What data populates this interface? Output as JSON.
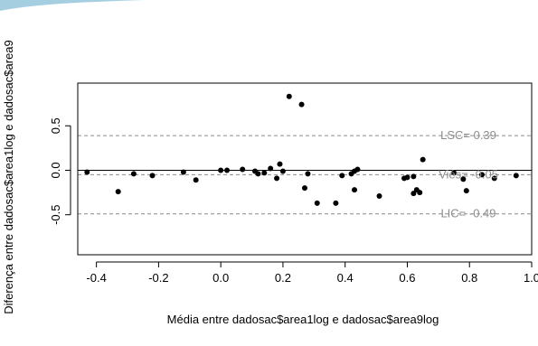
{
  "chart_data": {
    "type": "scatter",
    "title": "",
    "xlabel": "Média entre dadosac$area1log e dadosac$area9log",
    "ylabel": "Diferença entre dadosac$area1log e dadosac$area9",
    "xlim": [
      -0.46,
      1.0
    ],
    "ylim": [
      -0.95,
      0.98
    ],
    "x_ticks": [
      -0.4,
      -0.2,
      0.0,
      0.2,
      0.4,
      0.6,
      0.8,
      1.0
    ],
    "x_tick_labels": [
      "-0.4",
      "-0.2",
      "0.0",
      "0.2",
      "0.4",
      "0.6",
      "0.8",
      "1.0"
    ],
    "y_ticks": [
      -0.5,
      0.0,
      0.5
    ],
    "y_tick_labels": [
      "-0.5",
      "0.0",
      "0.5"
    ],
    "grid": false,
    "zero_line": 0.0,
    "reference_lines": [
      {
        "label": "LSC= 0.39",
        "value": 0.39,
        "style": "dashed"
      },
      {
        "label": "Viés= -0.05",
        "value": -0.05,
        "style": "dashed"
      },
      {
        "label": "LIC= -0.49",
        "value": -0.49,
        "style": "dashed"
      }
    ],
    "points": [
      {
        "x": -0.43,
        "y": -0.02
      },
      {
        "x": -0.33,
        "y": -0.24
      },
      {
        "x": -0.28,
        "y": -0.04
      },
      {
        "x": -0.22,
        "y": -0.06
      },
      {
        "x": -0.12,
        "y": -0.02
      },
      {
        "x": -0.08,
        "y": -0.11
      },
      {
        "x": 0.0,
        "y": 0.0
      },
      {
        "x": 0.02,
        "y": 0.0
      },
      {
        "x": 0.07,
        "y": 0.01
      },
      {
        "x": 0.11,
        "y": -0.01
      },
      {
        "x": 0.12,
        "y": -0.04
      },
      {
        "x": 0.14,
        "y": -0.03
      },
      {
        "x": 0.16,
        "y": 0.02
      },
      {
        "x": 0.18,
        "y": -0.09
      },
      {
        "x": 0.19,
        "y": 0.07
      },
      {
        "x": 0.2,
        "y": -0.01
      },
      {
        "x": 0.22,
        "y": 0.83
      },
      {
        "x": 0.26,
        "y": 0.74
      },
      {
        "x": 0.27,
        "y": -0.2
      },
      {
        "x": 0.28,
        "y": -0.04
      },
      {
        "x": 0.31,
        "y": -0.37
      },
      {
        "x": 0.37,
        "y": -0.37
      },
      {
        "x": 0.39,
        "y": -0.06
      },
      {
        "x": 0.42,
        "y": -0.04
      },
      {
        "x": 0.43,
        "y": -0.22
      },
      {
        "x": 0.43,
        "y": -0.01
      },
      {
        "x": 0.44,
        "y": 0.01
      },
      {
        "x": 0.51,
        "y": -0.29
      },
      {
        "x": 0.59,
        "y": -0.09
      },
      {
        "x": 0.6,
        "y": -0.08
      },
      {
        "x": 0.62,
        "y": -0.26
      },
      {
        "x": 0.62,
        "y": -0.07
      },
      {
        "x": 0.63,
        "y": -0.22
      },
      {
        "x": 0.64,
        "y": -0.25
      },
      {
        "x": 0.65,
        "y": 0.12
      },
      {
        "x": 0.75,
        "y": -0.03
      },
      {
        "x": 0.78,
        "y": -0.1
      },
      {
        "x": 0.79,
        "y": -0.23
      },
      {
        "x": 0.84,
        "y": -0.05
      },
      {
        "x": 0.88,
        "y": -0.09
      },
      {
        "x": 0.95,
        "y": -0.06
      }
    ],
    "colors": {
      "points": "#000000",
      "reference_lines": "#8c8c8c",
      "reference_labels": "#8c8c8c",
      "axes": "#000000",
      "decor": "#5ba7c9"
    }
  }
}
